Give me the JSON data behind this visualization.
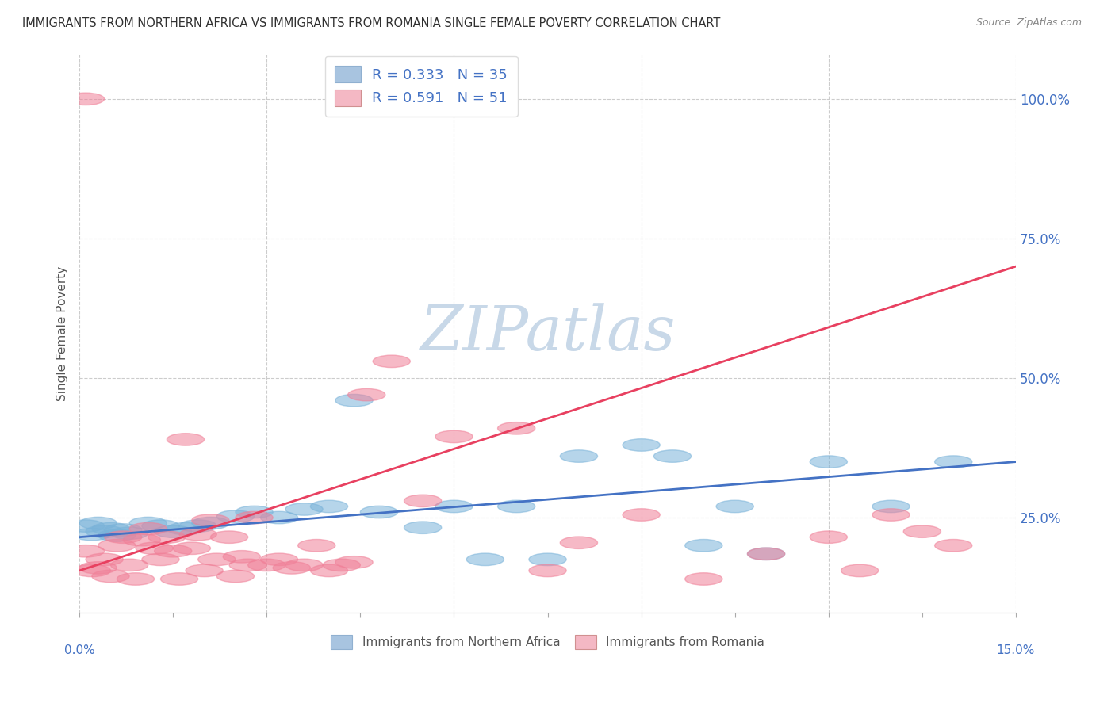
{
  "title": "IMMIGRANTS FROM NORTHERN AFRICA VS IMMIGRANTS FROM ROMANIA SINGLE FEMALE POVERTY CORRELATION CHART",
  "source": "Source: ZipAtlas.com",
  "ylabel": "Single Female Poverty",
  "y_ticks": [
    0.25,
    0.5,
    0.75,
    1.0
  ],
  "y_tick_labels": [
    "25.0%",
    "50.0%",
    "75.0%",
    "100.0%"
  ],
  "xlim": [
    0.0,
    0.15
  ],
  "ylim": [
    0.08,
    1.08
  ],
  "legend1_label": "R = 0.333   N = 35",
  "legend2_label": "R = 0.591   N = 51",
  "legend_color1": "#a8c4e0",
  "legend_color2": "#f4b8c4",
  "scatter_color1": "#7ab3d9",
  "scatter_color2": "#f08098",
  "trendline_color1": "#4472c4",
  "trendline_color2": "#e84060",
  "watermark": "ZIPatlas",
  "watermark_color": "#c8d8e8",
  "background_color": "#ffffff",
  "grid_color": "#cccccc",
  "title_color": "#303030",
  "axis_label_color": "#4472c4",
  "blue_x": [
    0.001,
    0.002,
    0.003,
    0.004,
    0.005,
    0.006,
    0.007,
    0.008,
    0.011,
    0.013,
    0.015,
    0.017,
    0.019,
    0.021,
    0.025,
    0.028,
    0.032,
    0.036,
    0.04,
    0.044,
    0.048,
    0.055,
    0.06,
    0.065,
    0.07,
    0.075,
    0.08,
    0.09,
    0.095,
    0.1,
    0.105,
    0.11,
    0.12,
    0.13,
    0.14
  ],
  "blue_y": [
    0.235,
    0.22,
    0.24,
    0.225,
    0.23,
    0.218,
    0.228,
    0.222,
    0.24,
    0.235,
    0.225,
    0.23,
    0.235,
    0.24,
    0.252,
    0.26,
    0.25,
    0.265,
    0.27,
    0.46,
    0.26,
    0.232,
    0.27,
    0.175,
    0.27,
    0.175,
    0.36,
    0.38,
    0.36,
    0.2,
    0.27,
    0.185,
    0.35,
    0.27,
    0.35
  ],
  "pink_x": [
    0.001,
    0.002,
    0.003,
    0.004,
    0.005,
    0.006,
    0.007,
    0.008,
    0.009,
    0.01,
    0.011,
    0.012,
    0.013,
    0.014,
    0.015,
    0.016,
    0.017,
    0.018,
    0.019,
    0.02,
    0.021,
    0.022,
    0.024,
    0.025,
    0.026,
    0.027,
    0.028,
    0.03,
    0.032,
    0.034,
    0.036,
    0.038,
    0.04,
    0.042,
    0.044,
    0.046,
    0.05,
    0.055,
    0.06,
    0.07,
    0.075,
    0.08,
    0.09,
    0.1,
    0.11,
    0.12,
    0.125,
    0.13,
    0.135,
    0.14,
    0.001
  ],
  "pink_y": [
    0.19,
    0.155,
    0.16,
    0.175,
    0.145,
    0.2,
    0.215,
    0.165,
    0.14,
    0.21,
    0.23,
    0.195,
    0.175,
    0.215,
    0.19,
    0.14,
    0.39,
    0.195,
    0.22,
    0.155,
    0.245,
    0.175,
    0.215,
    0.145,
    0.18,
    0.165,
    0.25,
    0.165,
    0.175,
    0.16,
    0.165,
    0.2,
    0.155,
    0.165,
    0.17,
    0.47,
    0.53,
    0.28,
    0.395,
    0.41,
    0.155,
    0.205,
    0.255,
    0.14,
    0.185,
    0.215,
    0.155,
    0.255,
    0.225,
    0.2,
    1.0
  ],
  "blue_trend_x": [
    0.0,
    0.15
  ],
  "blue_trend_y": [
    0.215,
    0.35
  ],
  "pink_trend_x": [
    0.0,
    0.15
  ],
  "pink_trend_y": [
    0.155,
    0.7
  ]
}
